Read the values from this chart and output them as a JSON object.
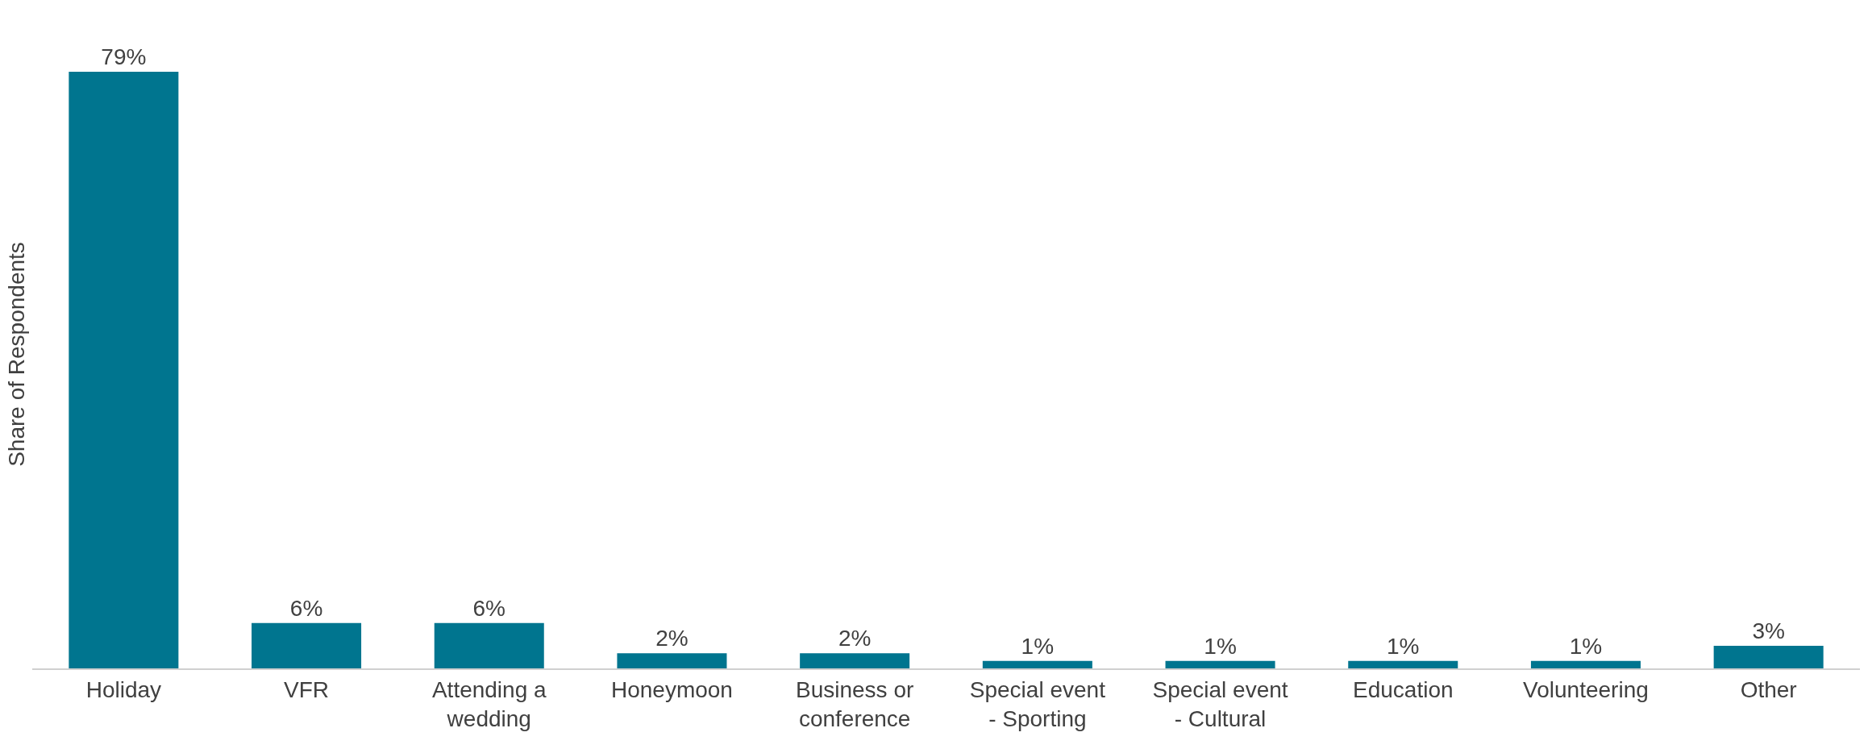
{
  "chart_data": {
    "type": "bar",
    "ylabel": "Share of Respondents",
    "categories": [
      "Holiday",
      "VFR",
      "Attending a wedding",
      "Honeymoon",
      "Business or conference",
      "Special event - Sporting",
      "Special event - Cultural",
      "Education",
      "Volunteering",
      "Other"
    ],
    "values": [
      79,
      6,
      6,
      2,
      2,
      1,
      1,
      1,
      1,
      3
    ],
    "color": "#00758f",
    "value_labels": [
      "79%",
      "6%",
      "6%",
      "2%",
      "2%",
      "1%",
      "1%",
      "1%",
      "1%",
      "3%"
    ]
  }
}
